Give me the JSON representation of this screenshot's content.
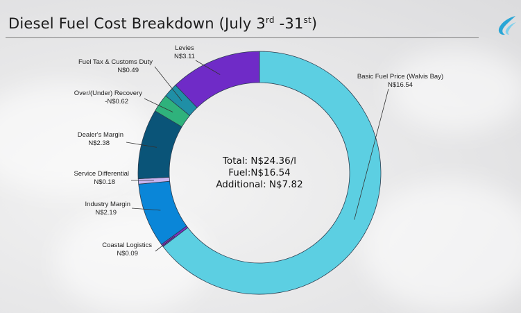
{
  "header": {
    "title_prefix": "Diesel Fuel Cost Breakdown (July 3",
    "title_sup1": "rd",
    "title_mid": " -31",
    "title_sup2": "st",
    "title_suffix": ")"
  },
  "chart_data": {
    "type": "pie",
    "title": "Diesel Fuel Cost Breakdown (July 3rd -31st)",
    "donut": true,
    "center_text": [
      "Total: N$24.36/l",
      "Fuel:N$16.54",
      "Additional: N$7.82"
    ],
    "slices": [
      {
        "name": "Basic Fuel Price (Walvis Bay)",
        "value_label": "N$16.54",
        "value": 16.54,
        "color": "#5ccfe2"
      },
      {
        "name": "Coastal Logistics",
        "value_label": "N$0.09",
        "value": 0.09,
        "color": "#7a2fc0"
      },
      {
        "name": "Industry Margin",
        "value_label": "N$2.19",
        "value": 2.19,
        "color": "#0a86d8"
      },
      {
        "name": "Service Differential",
        "value_label": "N$0.18",
        "value": 0.18,
        "color": "#c8b3ef"
      },
      {
        "name": "Dealer's Margin",
        "value_label": "N$2.38",
        "value": 2.38,
        "color": "#0a5478"
      },
      {
        "name": "Over/(Under) Recovery",
        "value_label": "-N$0.62",
        "value": 0.62,
        "color": "#2fb27c"
      },
      {
        "name": "Fuel Tax & Customs Duty",
        "value_label": "N$0.49",
        "value": 0.49,
        "color": "#1f8fa6"
      },
      {
        "name": "Levies",
        "value_label": "N$3.11",
        "value": 3.11,
        "color": "#6f2bc7"
      }
    ]
  }
}
